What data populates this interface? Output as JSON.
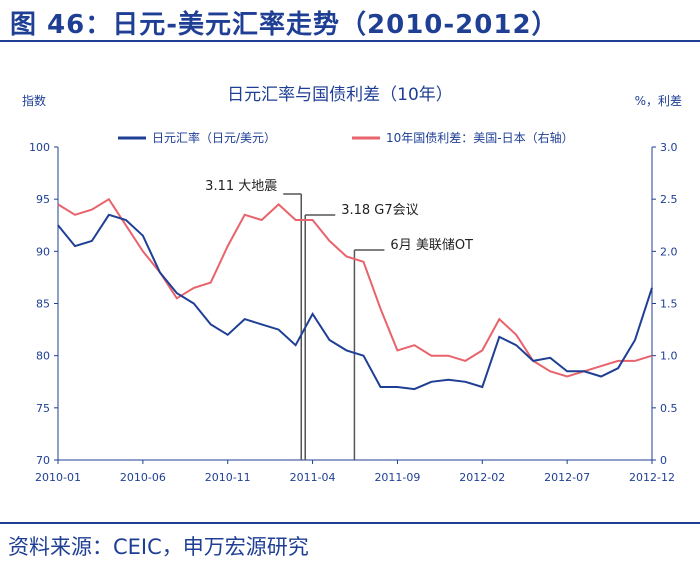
{
  "figure": {
    "title": "图 46：日元-美元汇率走势（2010-2012）",
    "source": "资料来源：CEIC，申万宏源研究"
  },
  "colors": {
    "primary": "#1f3f95",
    "secondary": "#e8636b",
    "marker": "#555555"
  },
  "chart_data": {
    "type": "line",
    "title": "日元汇率与国债利差（10年）",
    "ylabel": "指数",
    "y2label": "%，利差",
    "ylim": [
      70,
      100
    ],
    "yticks": [
      70,
      75,
      80,
      85,
      90,
      95,
      100
    ],
    "y2lim": [
      0,
      3
    ],
    "y2ticks": [
      "0",
      "0.5",
      "1.0",
      "1.5",
      "2.0",
      "2.5",
      "3.0"
    ],
    "xlim": [
      "2010-01",
      "2012-12"
    ],
    "xticks": [
      "2010-01",
      "2010-06",
      "2010-11",
      "2011-04",
      "2011-09",
      "2012-02",
      "2012-07",
      "2012-12"
    ],
    "legend_position": "top",
    "series": [
      {
        "name": "日元汇率（日元/美元）",
        "axis": "left",
        "x": [
          "2010-01",
          "2010-02",
          "2010-03",
          "2010-04",
          "2010-05",
          "2010-06",
          "2010-07",
          "2010-08",
          "2010-09",
          "2010-10",
          "2010-11",
          "2010-12",
          "2011-01",
          "2011-02",
          "2011-03",
          "2011-04",
          "2011-05",
          "2011-06",
          "2011-07",
          "2011-08",
          "2011-09",
          "2011-10",
          "2011-11",
          "2011-12",
          "2012-01",
          "2012-02",
          "2012-03",
          "2012-04",
          "2012-05",
          "2012-06",
          "2012-07",
          "2012-08",
          "2012-09",
          "2012-10",
          "2012-11",
          "2012-12"
        ],
        "values": [
          92.5,
          90.5,
          91.0,
          93.5,
          93.0,
          91.5,
          88.0,
          86.0,
          85.0,
          83.0,
          82.0,
          83.5,
          83.0,
          82.5,
          81.0,
          84.0,
          81.5,
          80.5,
          80.0,
          77.0,
          77.0,
          76.8,
          77.5,
          77.7,
          77.5,
          77.0,
          81.8,
          81.0,
          79.5,
          79.8,
          78.5,
          78.5,
          78.0,
          78.8,
          81.5,
          86.5
        ]
      },
      {
        "name": "10年国债利差：美国-日本（右轴）",
        "axis": "right",
        "x": [
          "2010-01",
          "2010-02",
          "2010-03",
          "2010-04",
          "2010-05",
          "2010-06",
          "2010-07",
          "2010-08",
          "2010-09",
          "2010-10",
          "2010-11",
          "2010-12",
          "2011-01",
          "2011-02",
          "2011-03",
          "2011-04",
          "2011-05",
          "2011-06",
          "2011-07",
          "2011-08",
          "2011-09",
          "2011-10",
          "2011-11",
          "2011-12",
          "2012-01",
          "2012-02",
          "2012-03",
          "2012-04",
          "2012-05",
          "2012-06",
          "2012-07",
          "2012-08",
          "2012-09",
          "2012-10",
          "2012-11",
          "2012-12"
        ],
        "values": [
          2.45,
          2.35,
          2.4,
          2.5,
          2.25,
          2.0,
          1.8,
          1.55,
          1.65,
          1.7,
          2.05,
          2.35,
          2.3,
          2.45,
          2.3,
          2.3,
          2.1,
          1.95,
          1.9,
          1.45,
          1.05,
          1.1,
          1.0,
          1.0,
          0.95,
          1.05,
          1.35,
          1.2,
          0.95,
          0.85,
          0.8,
          0.85,
          0.9,
          0.95,
          0.95,
          1.0
        ]
      }
    ],
    "annotations": [
      {
        "text": "3.11 大地震",
        "date": "2011-03-11"
      },
      {
        "text": "3.18 G7会议",
        "date": "2011-03-18"
      },
      {
        "text": "6月 美联储OT",
        "date": "2011-06-15"
      }
    ]
  }
}
